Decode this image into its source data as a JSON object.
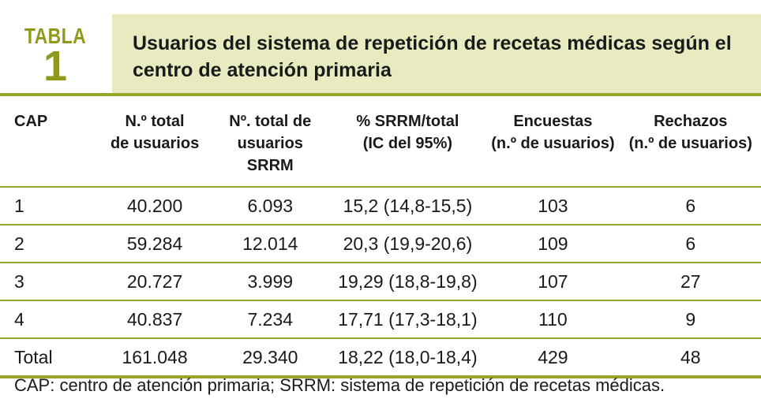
{
  "table_label": {
    "word": "TABLA",
    "number": "1"
  },
  "title": "Usuarios del sistema de repetición de recetas médicas según el centro de atención primaria",
  "columns": [
    {
      "line1": "CAP",
      "line2": ""
    },
    {
      "line1": "N.º total",
      "line2": "de usuarios"
    },
    {
      "line1": "Nº. total de",
      "line2": "usuarios SRRM"
    },
    {
      "line1": "% SRRM/total",
      "line2": "(IC del 95%)"
    },
    {
      "line1": "Encuestas",
      "line2": "(n.º de usuarios)"
    },
    {
      "line1": "Rechazos",
      "line2": "(n.º de usuarios)"
    }
  ],
  "rows": [
    {
      "cap": "1",
      "total": "40.200",
      "srrm": "6.093",
      "pct": "15,2 (14,8-15,5)",
      "encuestas": "103",
      "rechazos": "6"
    },
    {
      "cap": "2",
      "total": "59.284",
      "srrm": "12.014",
      "pct": "20,3 (19,9-20,6)",
      "encuestas": "109",
      "rechazos": "6"
    },
    {
      "cap": "3",
      "total": "20.727",
      "srrm": "3.999",
      "pct": "19,29 (18,8-19,8)",
      "encuestas": "107",
      "rechazos": "27"
    },
    {
      "cap": "4",
      "total": "40.837",
      "srrm": "7.234",
      "pct": "17,71 (17,3-18,1)",
      "encuestas": "110",
      "rechazos": "9"
    },
    {
      "cap": "Total",
      "total": "161.048",
      "srrm": "29.340",
      "pct": "18,22 (18,0-18,4)",
      "encuestas": "429",
      "rechazos": "48"
    }
  ],
  "footnote": "CAP: centro de atención primaria; SRRM: sistema de repetición de recetas médicas.",
  "colors": {
    "accent": "#9aa62a",
    "label_text": "#8f9a1c",
    "title_background": "#e7ebbf"
  }
}
